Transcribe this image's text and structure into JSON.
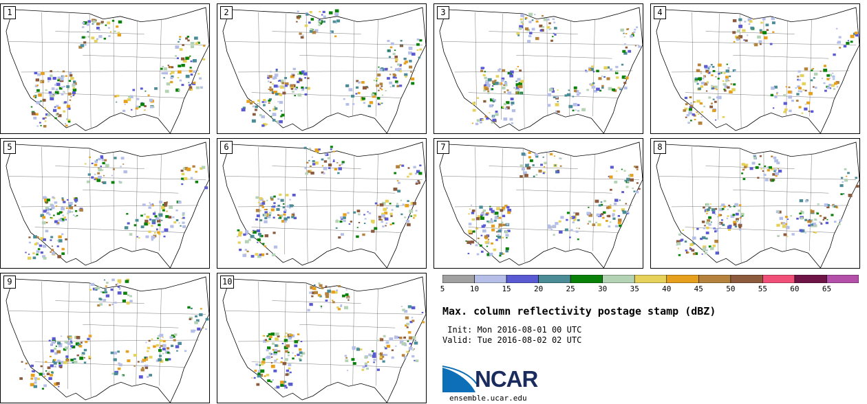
{
  "panels": [
    {
      "label": "1"
    },
    {
      "label": "2"
    },
    {
      "label": "3"
    },
    {
      "label": "4"
    },
    {
      "label": "5"
    },
    {
      "label": "6"
    },
    {
      "label": "7"
    },
    {
      "label": "8"
    },
    {
      "label": "9"
    },
    {
      "label": "10"
    }
  ],
  "colorbar": {
    "colors": [
      "#a0a0a0",
      "#b4bee6",
      "#5a5ad2",
      "#4b8c96",
      "#0a820a",
      "#b4d2b4",
      "#e6d25a",
      "#e6a01e",
      "#b4823c",
      "#8c5a3c",
      "#f05078",
      "#6e1446",
      "#b450aa"
    ],
    "ticks": [
      "5",
      "10",
      "15",
      "20",
      "25",
      "30",
      "35",
      "40",
      "45",
      "50",
      "55",
      "60",
      "65"
    ]
  },
  "title": "Max. column reflectivity postage stamp (dBZ)",
  "init": " Init: Mon 2016-08-01 00 UTC",
  "valid": "Valid: Tue 2016-08-02 02 UTC",
  "logo": {
    "name": "NCAR",
    "url": "ensemble.ucar.edu",
    "color": "#1a2b5e",
    "swoosh": "#0d6fb8"
  }
}
